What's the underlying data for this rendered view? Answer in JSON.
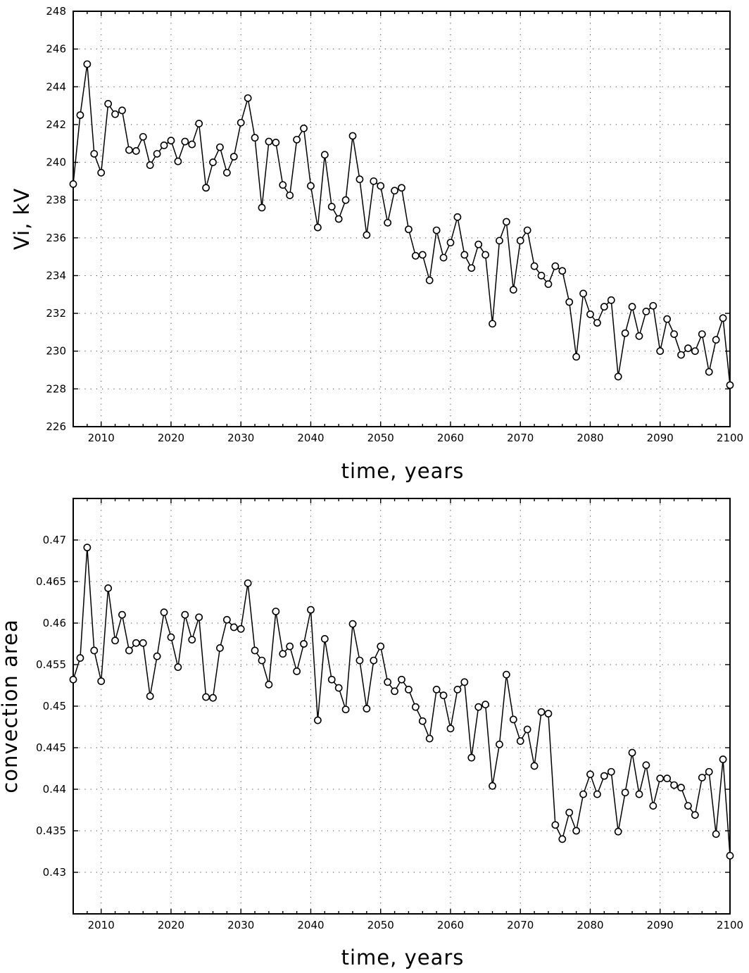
{
  "chart_data": [
    {
      "type": "line",
      "title": "",
      "xlabel": "time, years",
      "ylabel": "Vi, kV",
      "xlim": [
        2006,
        2100
      ],
      "ylim": [
        226,
        248
      ],
      "xticks": [
        2010,
        2020,
        2030,
        2040,
        2050,
        2060,
        2070,
        2080,
        2090,
        2100
      ],
      "xtick_labels": [
        "2010",
        "2020",
        "2030",
        "2040",
        "2050",
        "2060",
        "2070",
        "2080",
        "2090",
        "2100"
      ],
      "yticks": [
        226,
        228,
        230,
        232,
        234,
        236,
        238,
        240,
        242,
        244,
        246,
        248
      ],
      "ytick_labels": [
        "226",
        "228",
        "230",
        "232",
        "234",
        "236",
        "238",
        "240",
        "242",
        "244",
        "246",
        "248"
      ],
      "grid": true,
      "x": [
        2006,
        2007,
        2008,
        2009,
        2010,
        2011,
        2012,
        2013,
        2014,
        2015,
        2016,
        2017,
        2018,
        2019,
        2020,
        2021,
        2022,
        2023,
        2024,
        2025,
        2026,
        2027,
        2028,
        2029,
        2030,
        2031,
        2032,
        2033,
        2034,
        2035,
        2036,
        2037,
        2038,
        2039,
        2040,
        2041,
        2042,
        2043,
        2044,
        2045,
        2046,
        2047,
        2048,
        2049,
        2050,
        2051,
        2052,
        2053,
        2054,
        2055,
        2056,
        2057,
        2058,
        2059,
        2060,
        2061,
        2062,
        2063,
        2064,
        2065,
        2066,
        2067,
        2068,
        2069,
        2070,
        2071,
        2072,
        2073,
        2074,
        2075,
        2076,
        2077,
        2078,
        2079,
        2080,
        2081,
        2082,
        2083,
        2084,
        2085,
        2086,
        2087,
        2088,
        2089,
        2090,
        2091,
        2092,
        2093,
        2094,
        2095,
        2096,
        2097,
        2098,
        2099,
        2100
      ],
      "series": [
        {
          "values": [
            238.85,
            242.5,
            245.2,
            240.45,
            239.45,
            243.1,
            242.55,
            242.75,
            240.65,
            240.6,
            241.35,
            239.85,
            240.45,
            240.9,
            241.15,
            240.05,
            241.1,
            240.95,
            242.05,
            238.65,
            240.0,
            240.8,
            239.45,
            240.3,
            242.1,
            243.4,
            241.3,
            237.6,
            241.1,
            241.05,
            238.8,
            238.25,
            241.2,
            241.8,
            238.75,
            236.55,
            240.4,
            237.65,
            237.0,
            238.0,
            241.4,
            239.1,
            236.15,
            239.0,
            238.75,
            236.8,
            238.5,
            238.65,
            236.45,
            235.05,
            235.1,
            233.75,
            236.4,
            234.95,
            235.75,
            237.1,
            235.1,
            234.4,
            235.65,
            235.1,
            231.45,
            235.85,
            236.85,
            233.25,
            235.85,
            236.4,
            234.5,
            234.0,
            233.55,
            234.5,
            234.25,
            232.6,
            229.7,
            233.05,
            231.95,
            231.5,
            232.35,
            232.7,
            228.65,
            230.95,
            232.35,
            230.8,
            232.1,
            232.4,
            230.0,
            231.7,
            230.9,
            229.8,
            230.15,
            230.0,
            230.9,
            228.9,
            230.6,
            231.75,
            228.2
          ]
        }
      ]
    },
    {
      "type": "line",
      "title": "",
      "xlabel": "time, years",
      "ylabel": "convection area",
      "xlim": [
        2006,
        2100
      ],
      "ylim": [
        0.425,
        0.475
      ],
      "xticks": [
        2010,
        2020,
        2030,
        2040,
        2050,
        2060,
        2070,
        2080,
        2090,
        2100
      ],
      "xtick_labels": [
        "2010",
        "2020",
        "2030",
        "2040",
        "2050",
        "2060",
        "2070",
        "2080",
        "2090",
        "2100"
      ],
      "yticks": [
        0.43,
        0.435,
        0.44,
        0.445,
        0.45,
        0.455,
        0.46,
        0.465,
        0.47
      ],
      "ytick_labels": [
        "0.43",
        "0.435",
        "0.44",
        "0.445",
        "0.45",
        "0.455",
        "0.46",
        "0.465",
        "0.47"
      ],
      "grid": true,
      "x": [
        2006,
        2007,
        2008,
        2009,
        2010,
        2011,
        2012,
        2013,
        2014,
        2015,
        2016,
        2017,
        2018,
        2019,
        2020,
        2021,
        2022,
        2023,
        2024,
        2025,
        2026,
        2027,
        2028,
        2029,
        2030,
        2031,
        2032,
        2033,
        2034,
        2035,
        2036,
        2037,
        2038,
        2039,
        2040,
        2041,
        2042,
        2043,
        2044,
        2045,
        2046,
        2047,
        2048,
        2049,
        2050,
        2051,
        2052,
        2053,
        2054,
        2055,
        2056,
        2057,
        2058,
        2059,
        2060,
        2061,
        2062,
        2063,
        2064,
        2065,
        2066,
        2067,
        2068,
        2069,
        2070,
        2071,
        2072,
        2073,
        2074,
        2075,
        2076,
        2077,
        2078,
        2079,
        2080,
        2081,
        2082,
        2083,
        2084,
        2085,
        2086,
        2087,
        2088,
        2089,
        2090,
        2091,
        2092,
        2093,
        2094,
        2095,
        2096,
        2097,
        2098,
        2099,
        2100
      ],
      "series": [
        {
          "values": [
            0.4532,
            0.4558,
            0.4691,
            0.4567,
            0.453,
            0.4642,
            0.4579,
            0.461,
            0.4567,
            0.4576,
            0.4576,
            0.4512,
            0.456,
            0.4613,
            0.4583,
            0.4547,
            0.461,
            0.458,
            0.4607,
            0.4511,
            0.451,
            0.457,
            0.4604,
            0.4595,
            0.4593,
            0.4648,
            0.4567,
            0.4555,
            0.4526,
            0.4614,
            0.4563,
            0.4572,
            0.4542,
            0.4575,
            0.4616,
            0.4483,
            0.4581,
            0.4532,
            0.4522,
            0.4496,
            0.4599,
            0.4555,
            0.4497,
            0.4555,
            0.4572,
            0.4529,
            0.4518,
            0.4532,
            0.452,
            0.4499,
            0.4482,
            0.4461,
            0.452,
            0.4513,
            0.4473,
            0.452,
            0.4529,
            0.4438,
            0.4499,
            0.4502,
            0.4404,
            0.4454,
            0.4538,
            0.4484,
            0.4458,
            0.4472,
            0.4428,
            0.4493,
            0.4491,
            0.4357,
            0.434,
            0.4372,
            0.435,
            0.4394,
            0.4418,
            0.4394,
            0.4416,
            0.4421,
            0.4349,
            0.4396,
            0.4444,
            0.4394,
            0.4429,
            0.438,
            0.4413,
            0.4413,
            0.4405,
            0.4402,
            0.438,
            0.4369,
            0.4414,
            0.4421,
            0.4346,
            0.4436,
            0.432
          ]
        }
      ]
    }
  ]
}
